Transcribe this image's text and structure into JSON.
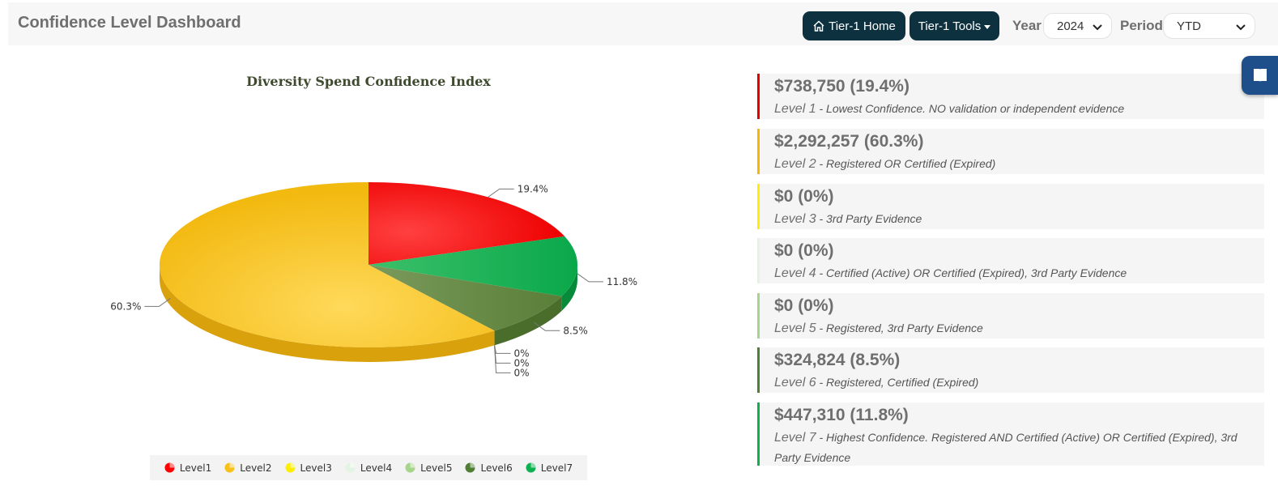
{
  "header": {
    "title": "Confidence Level Dashboard",
    "home_label": "Tier-1 Home",
    "tools_label": "Tier-1 Tools",
    "year_label": "Year",
    "year_value": "2024",
    "period_label": "Period",
    "period_value": "YTD"
  },
  "chart_data": {
    "type": "pie",
    "title": "Diversity Spend Confidence Index",
    "slices": [
      {
        "name": "Level1",
        "value": 19.4,
        "label": "19.4%",
        "color": "#ff1a1a"
      },
      {
        "name": "Level7",
        "value": 11.8,
        "label": "11.8%",
        "color": "#0fb04f"
      },
      {
        "name": "Level6",
        "value": 8.5,
        "label": "8.5%",
        "color": "#5e8a3a"
      },
      {
        "name": "Level5",
        "value": 0,
        "label": "0%",
        "color": "#a6d48a"
      },
      {
        "name": "Level4",
        "value": 0,
        "label": "0%",
        "color": "#e0f2e0"
      },
      {
        "name": "Level3",
        "value": 0,
        "label": "0%",
        "color": "#fff200"
      },
      {
        "name": "Level2",
        "value": 60.3,
        "label": "60.3%",
        "color": "#f7c01a"
      }
    ],
    "legend": [
      {
        "name": "Level1",
        "color": "#ff0000"
      },
      {
        "name": "Level2",
        "color": "#f7c01a"
      },
      {
        "name": "Level3",
        "color": "#ffee00"
      },
      {
        "name": "Level4",
        "color": "#e4f4e4"
      },
      {
        "name": "Level5",
        "color": "#a6d48a"
      },
      {
        "name": "Level6",
        "color": "#4f7f33"
      },
      {
        "name": "Level7",
        "color": "#0fb04f"
      }
    ],
    "legend_position": "bottom-center"
  },
  "levels": [
    {
      "amount": "$738,750 (19.4%)",
      "level": "Level 1",
      "description": "- Lowest Confidence. NO validation or independent evidence",
      "color": "#e60000"
    },
    {
      "amount": "$2,292,257 (60.3%)",
      "level": "Level 2",
      "description": "- Registered OR Certified (Expired)",
      "color": "#f5b800"
    },
    {
      "amount": "$0 (0%)",
      "level": "Level 3",
      "description": "- 3rd Party Evidence",
      "color": "#ffee00"
    },
    {
      "amount": "$0 (0%)",
      "level": "Level 4",
      "description": "- Certified (Active) OR Certified (Expired), 3rd Party Evidence",
      "color": "#e4f4e4"
    },
    {
      "amount": "$0 (0%)",
      "level": "Level 5",
      "description": "- Registered, 3rd Party Evidence",
      "color": "#a6d48a"
    },
    {
      "amount": "$324,824 (8.5%)",
      "level": "Level 6",
      "description": "- Registered, Certified (Expired)",
      "color": "#4f7f33"
    },
    {
      "amount": "$447,310 (11.8%)",
      "level": "Level 7",
      "description": "- Highest Confidence. Registered AND Certified (Active) OR Certified (Expired), 3rd Party Evidence",
      "color": "#0fb04f"
    }
  ]
}
